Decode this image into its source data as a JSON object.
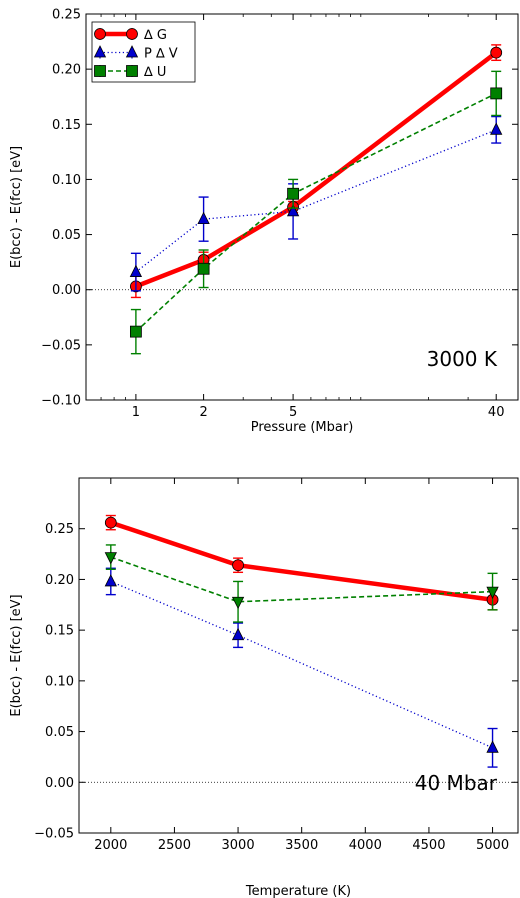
{
  "chart_data": [
    {
      "type": "line",
      "annotation": "3000 K",
      "xlabel": "Pressure (Mbar)",
      "ylabel": "E(bcc) - E(fcc) [eV]",
      "xscale": "log",
      "xlim": [
        0.6,
        50
      ],
      "ylim": [
        -0.1,
        0.25
      ],
      "xticks": [
        1,
        2,
        5,
        40
      ],
      "yticks": [
        -0.1,
        -0.05,
        0.0,
        0.05,
        0.1,
        0.15,
        0.2,
        0.25
      ],
      "ytick_labels": [
        "−0.10",
        "−0.05",
        "0.00",
        "0.05",
        "0.10",
        "0.15",
        "0.20",
        "0.25"
      ],
      "zero_line": true,
      "legend": {
        "position": "top-left"
      },
      "series": [
        {
          "name": "∆ G",
          "color": "#ff0000",
          "marker": "circle",
          "style": "solid",
          "x": [
            1,
            2,
            5,
            40
          ],
          "y": [
            0.003,
            0.027,
            0.075,
            0.215
          ],
          "err": [
            0.01,
            0.007,
            0.005,
            0.007
          ]
        },
        {
          "name": "P ∆ V",
          "color": "#0000cc",
          "marker": "triangle-up",
          "style": "dotted",
          "x": [
            1,
            2,
            5,
            40
          ],
          "y": [
            0.016,
            0.064,
            0.071,
            0.145
          ],
          "err": [
            0.017,
            0.02,
            0.025,
            0.012
          ]
        },
        {
          "name": "∆ U",
          "color": "#008000",
          "marker": "square",
          "style": "dashed",
          "x": [
            1,
            2,
            5,
            40
          ],
          "y": [
            -0.038,
            0.019,
            0.087,
            0.178
          ],
          "err": [
            0.02,
            0.017,
            0.013,
            0.02
          ]
        }
      ]
    },
    {
      "type": "line",
      "annotation": "40 Mbar",
      "xlabel": "Temperature (K)",
      "ylabel": "E(bcc) - E(fcc) [eV]",
      "xlim": [
        1750,
        5200
      ],
      "ylim": [
        -0.05,
        0.3
      ],
      "xticks": [
        2000,
        2500,
        3000,
        3500,
        4000,
        4500,
        5000
      ],
      "yticks": [
        -0.05,
        0.0,
        0.05,
        0.1,
        0.15,
        0.2,
        0.25
      ],
      "ytick_labels": [
        "−0.05",
        "0.00",
        "0.05",
        "0.10",
        "0.15",
        "0.20",
        "0.25"
      ],
      "zero_line": true,
      "series": [
        {
          "color": "#ff0000",
          "marker": "circle",
          "style": "solid",
          "x": [
            2000,
            3000,
            5000
          ],
          "y": [
            0.256,
            0.214,
            0.18
          ],
          "err": [
            0.007,
            0.007,
            0.01
          ]
        },
        {
          "color": "#0000cc",
          "marker": "triangle-up",
          "style": "dotted",
          "x": [
            2000,
            3000,
            5000
          ],
          "y": [
            0.198,
            0.145,
            0.034
          ],
          "err": [
            0.013,
            0.012,
            0.019
          ]
        },
        {
          "color": "#008000",
          "marker": "triangle-down",
          "style": "dashed",
          "x": [
            2000,
            3000,
            5000
          ],
          "y": [
            0.222,
            0.178,
            0.188
          ],
          "err": [
            0.012,
            0.02,
            0.018
          ]
        }
      ]
    }
  ]
}
